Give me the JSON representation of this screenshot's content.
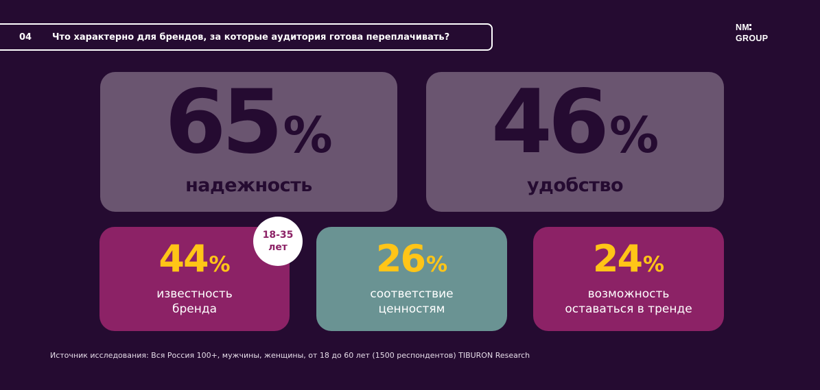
{
  "header": {
    "slide_number": "04",
    "title": "Что характерно для брендов, за которые аудитория готова переплачивать?"
  },
  "logo": {
    "line1": "NM",
    "line2": "GROUP"
  },
  "stats_top": [
    {
      "value": "65",
      "unit": "%",
      "label": "надежность"
    },
    {
      "value": "46",
      "unit": "%",
      "label": "удобство"
    }
  ],
  "stats_bottom": [
    {
      "value": "44",
      "unit": "%",
      "label_line1": "известность",
      "label_line2": "бренда"
    },
    {
      "value": "26",
      "unit": "%",
      "label_line1": "соответствие",
      "label_line2": "ценностям"
    },
    {
      "value": "24",
      "unit": "%",
      "label_line1": "возможность",
      "label_line2": "оставаться в тренде"
    }
  ],
  "age_badge": {
    "line1": "18-35",
    "line2": "лет"
  },
  "source": "Источник исследования: Вся Россия 100+, мужчины, женщины, от 18 до 60 лет (1500 респондентов) TIBURON Research",
  "colors": {
    "background": "#250b31",
    "card_top": "#6a5570",
    "card_magenta": "#8c2266",
    "card_teal": "#6a9393",
    "accent_yellow": "#ffc517",
    "text_dark": "#250b31"
  }
}
